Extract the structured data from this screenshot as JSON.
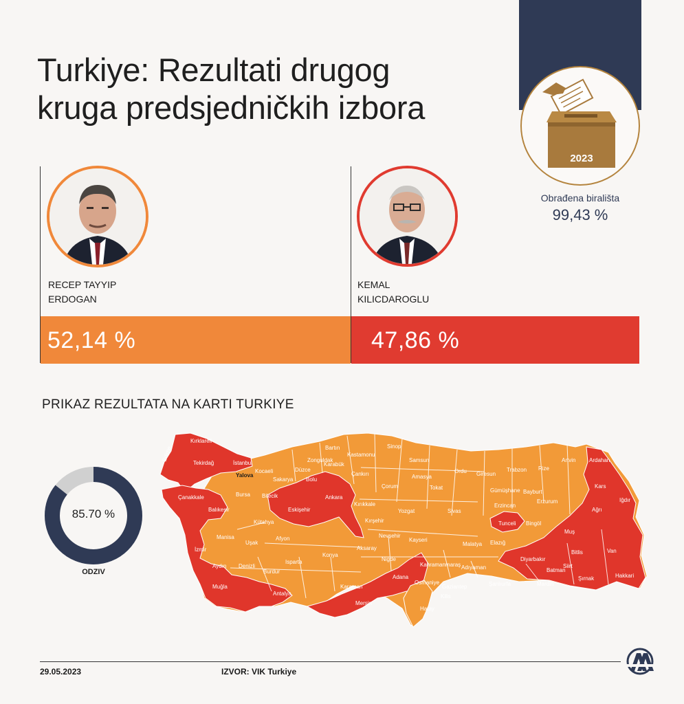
{
  "title": {
    "line1": "Turkiye: Rezultati drugog",
    "line2": "kruga predsjedničkih izbora"
  },
  "ballot": {
    "year": "2023",
    "icon": "ballot-box-icon"
  },
  "stations": {
    "label": "Obrađena birališta",
    "value": "99,43 %"
  },
  "candidates": [
    {
      "name_line1": "RECEP TAYYIP",
      "name_line2": "ERDOGAN",
      "result": "52,14 %",
      "share": 52.14,
      "color": "#f0883a"
    },
    {
      "name_line1": "KEMAL",
      "name_line2": "KILICDAROGLU",
      "result": "47,86 %",
      "share": 47.86,
      "color": "#e03b30"
    }
  ],
  "map": {
    "heading": "PRIKAZ REZULTATA NA KARTI TURKIYE",
    "colors": {
      "erdogan": "#f29a38",
      "kilicdaroglu": "#e0362b"
    },
    "province_labels": [
      "Kırklareli",
      "Edirne",
      "Tekirdağ",
      "İstanbul",
      "Yalova",
      "Kocaeli",
      "Sakarya",
      "Düzce",
      "Zonguldak",
      "Bartın",
      "Kastamonu",
      "Sinop",
      "Samsun",
      "Ordu",
      "Giresun",
      "Trabzon",
      "Rize",
      "Artvin",
      "Ardahan",
      "Kars",
      "Iğdır",
      "Ağrı",
      "Van",
      "Hakkari",
      "Şırnak",
      "Siirt",
      "Bitlis",
      "Muş",
      "Batman",
      "Mardin",
      "Diyarbakır",
      "Bingöl",
      "Tunceli",
      "Elazığ",
      "Erzurum",
      "Erzincan",
      "Bayburt",
      "Gümüşhane",
      "Tokat",
      "Amasya",
      "Çorum",
      "Çankırı",
      "Karabük",
      "Bolu",
      "Bilecik",
      "Bursa",
      "Balıkesir",
      "Çanakkale",
      "İzmir",
      "Manisa",
      "Uşak",
      "Kütahya",
      "Eskişehir",
      "Ankara",
      "Kırıkkale",
      "Kırşehir",
      "Yozgat",
      "Sivas",
      "Malatya",
      "Kayseri",
      "Nevşehir",
      "Aksaray",
      "Niğde",
      "Konya",
      "Karaman",
      "Afyon",
      "Isparta",
      "Burdur",
      "Denizli",
      "Aydın",
      "Muğla",
      "Antalya",
      "Mersin",
      "Adana",
      "Osmaniye",
      "Hatay",
      "Kilis",
      "Gaziantep",
      "Şanlıurfa",
      "Adıyaman",
      "Kahramanmaraş",
      "Bilecik"
    ]
  },
  "turnout": {
    "value": "85.70 %",
    "fraction": 0.857,
    "label": "ODZIV"
  },
  "footer": {
    "date": "29.05.2023",
    "source": "IZVOR: VIK Turkiye",
    "logo": "aa-logo-icon"
  }
}
